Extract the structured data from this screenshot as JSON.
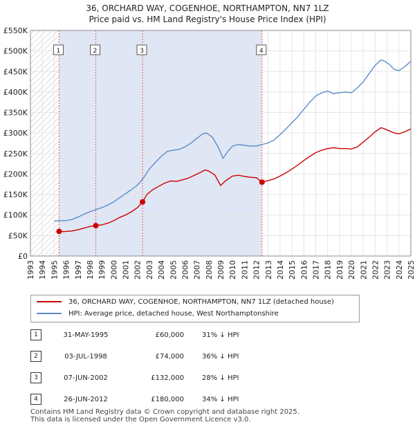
{
  "title_line1": "36, ORCHARD WAY, COGENHOE, NORTHAMPTON, NN7 1LZ",
  "title_line2": "Price paid vs. HM Land Registry's House Price Index (HPI)",
  "chart_data": {
    "type": "line",
    "xlim": [
      1993,
      2025
    ],
    "ylim": [
      0,
      550000
    ],
    "x_ticks": [
      "1993",
      "1994",
      "1995",
      "1996",
      "1997",
      "1998",
      "1999",
      "2000",
      "2001",
      "2002",
      "2003",
      "2004",
      "2005",
      "2006",
      "2007",
      "2008",
      "2009",
      "2010",
      "2011",
      "2012",
      "2013",
      "2014",
      "2015",
      "2016",
      "2017",
      "2018",
      "2019",
      "2020",
      "2021",
      "2022",
      "2023",
      "2024",
      "2025"
    ],
    "y_ticks": [
      {
        "value": 0,
        "label": "£0"
      },
      {
        "value": 50000,
        "label": "£50K"
      },
      {
        "value": 100000,
        "label": "£100K"
      },
      {
        "value": 150000,
        "label": "£150K"
      },
      {
        "value": 200000,
        "label": "£200K"
      },
      {
        "value": 250000,
        "label": "£250K"
      },
      {
        "value": 300000,
        "label": "£300K"
      },
      {
        "value": 350000,
        "label": "£350K"
      },
      {
        "value": 400000,
        "label": "£400K"
      },
      {
        "value": 450000,
        "label": "£450K"
      },
      {
        "value": 500000,
        "label": "£500K"
      },
      {
        "value": 550000,
        "label": "£550K"
      }
    ],
    "hatch_before_x": 1995.4,
    "series": [
      {
        "name": "36, ORCHARD WAY, COGENHOE, NORTHAMPTON, NN7 1LZ (detached house)",
        "color": "#cc0000",
        "points": [
          [
            1995.41,
            60000
          ],
          [
            1995.8,
            59500
          ],
          [
            1996.5,
            61000
          ],
          [
            1997.0,
            64000
          ],
          [
            1997.5,
            68000
          ],
          [
            1998.0,
            72000
          ],
          [
            1998.5,
            74000
          ],
          [
            1999.0,
            76000
          ],
          [
            1999.5,
            80000
          ],
          [
            2000.0,
            86000
          ],
          [
            2000.5,
            94000
          ],
          [
            2001.0,
            100000
          ],
          [
            2001.5,
            108000
          ],
          [
            2002.0,
            118000
          ],
          [
            2002.43,
            132000
          ],
          [
            2002.8,
            150000
          ],
          [
            2003.3,
            162000
          ],
          [
            2003.8,
            170000
          ],
          [
            2004.3,
            178000
          ],
          [
            2004.8,
            183000
          ],
          [
            2005.3,
            182000
          ],
          [
            2005.8,
            186000
          ],
          [
            2006.3,
            190000
          ],
          [
            2006.8,
            197000
          ],
          [
            2007.3,
            204000
          ],
          [
            2007.7,
            210000
          ],
          [
            2008.0,
            207000
          ],
          [
            2008.5,
            198000
          ],
          [
            2009.0,
            172000
          ],
          [
            2009.4,
            183000
          ],
          [
            2010.0,
            195000
          ],
          [
            2010.5,
            197000
          ],
          [
            2011.0,
            194000
          ],
          [
            2011.5,
            192000
          ],
          [
            2012.0,
            191000
          ],
          [
            2012.48,
            180000
          ],
          [
            2013.0,
            184000
          ],
          [
            2013.5,
            188000
          ],
          [
            2014.0,
            195000
          ],
          [
            2014.5,
            203000
          ],
          [
            2015.0,
            212000
          ],
          [
            2015.5,
            222000
          ],
          [
            2016.0,
            233000
          ],
          [
            2016.5,
            243000
          ],
          [
            2017.0,
            252000
          ],
          [
            2017.5,
            258000
          ],
          [
            2018.0,
            262000
          ],
          [
            2018.5,
            264000
          ],
          [
            2019.0,
            262000
          ],
          [
            2019.5,
            262000
          ],
          [
            2020.0,
            261000
          ],
          [
            2020.5,
            266000
          ],
          [
            2021.0,
            278000
          ],
          [
            2021.5,
            290000
          ],
          [
            2022.0,
            303000
          ],
          [
            2022.5,
            313000
          ],
          [
            2022.8,
            310000
          ],
          [
            2023.2,
            305000
          ],
          [
            2023.6,
            300000
          ],
          [
            2024.0,
            298000
          ],
          [
            2024.5,
            303000
          ],
          [
            2025.0,
            310000
          ]
        ]
      },
      {
        "name": "HPI: Average price, detached house, West Northamptonshire",
        "color": "#5b8cc8",
        "points": [
          [
            1995.0,
            85000
          ],
          [
            1995.5,
            86000
          ],
          [
            1996.0,
            86500
          ],
          [
            1996.5,
            89000
          ],
          [
            1997.0,
            95000
          ],
          [
            1997.5,
            102000
          ],
          [
            1998.0,
            108000
          ],
          [
            1998.5,
            113000
          ],
          [
            1999.0,
            118000
          ],
          [
            1999.5,
            124000
          ],
          [
            2000.0,
            132000
          ],
          [
            2000.5,
            142000
          ],
          [
            2001.0,
            152000
          ],
          [
            2001.5,
            162000
          ],
          [
            2002.0,
            173000
          ],
          [
            2002.5,
            190000
          ],
          [
            2003.0,
            212000
          ],
          [
            2003.5,
            228000
          ],
          [
            2004.0,
            243000
          ],
          [
            2004.5,
            255000
          ],
          [
            2005.0,
            258000
          ],
          [
            2005.5,
            260000
          ],
          [
            2006.0,
            266000
          ],
          [
            2006.5,
            275000
          ],
          [
            2007.0,
            287000
          ],
          [
            2007.5,
            298000
          ],
          [
            2007.8,
            300000
          ],
          [
            2008.3,
            290000
          ],
          [
            2008.8,
            265000
          ],
          [
            2009.2,
            238000
          ],
          [
            2009.6,
            255000
          ],
          [
            2010.0,
            268000
          ],
          [
            2010.5,
            272000
          ],
          [
            2011.0,
            270000
          ],
          [
            2011.5,
            268000
          ],
          [
            2012.0,
            268000
          ],
          [
            2012.5,
            272000
          ],
          [
            2013.0,
            276000
          ],
          [
            2013.5,
            283000
          ],
          [
            2014.0,
            296000
          ],
          [
            2014.5,
            310000
          ],
          [
            2015.0,
            325000
          ],
          [
            2015.5,
            340000
          ],
          [
            2016.0,
            358000
          ],
          [
            2016.5,
            375000
          ],
          [
            2017.0,
            390000
          ],
          [
            2017.5,
            398000
          ],
          [
            2018.0,
            402000
          ],
          [
            2018.5,
            396000
          ],
          [
            2019.0,
            398000
          ],
          [
            2019.5,
            400000
          ],
          [
            2020.0,
            398000
          ],
          [
            2020.5,
            410000
          ],
          [
            2021.0,
            425000
          ],
          [
            2021.5,
            445000
          ],
          [
            2022.0,
            465000
          ],
          [
            2022.5,
            478000
          ],
          [
            2022.8,
            475000
          ],
          [
            2023.2,
            467000
          ],
          [
            2023.6,
            455000
          ],
          [
            2024.0,
            452000
          ],
          [
            2024.5,
            462000
          ],
          [
            2025.0,
            475000
          ]
        ]
      }
    ],
    "sales": [
      {
        "label": "1",
        "x": 1995.41,
        "price": 60000
      },
      {
        "label": "2",
        "x": 1998.5,
        "price": 74000
      },
      {
        "label": "3",
        "x": 2002.43,
        "price": 132000
      },
      {
        "label": "4",
        "x": 2012.48,
        "price": 180000
      }
    ]
  },
  "legend": {
    "property_label": "36, ORCHARD WAY, COGENHOE, NORTHAMPTON, NN7 1LZ (detached house)",
    "property_color": "#cc0000",
    "hpi_label": "HPI: Average price, detached house, West Northamptonshire",
    "hpi_color": "#5b8cc8"
  },
  "table": [
    {
      "num": "1",
      "date": "31-MAY-1995",
      "price": "£60,000",
      "hpi": "31% ↓ HPI"
    },
    {
      "num": "2",
      "date": "03-JUL-1998",
      "price": "£74,000",
      "hpi": "36% ↓ HPI"
    },
    {
      "num": "3",
      "date": "07-JUN-2002",
      "price": "£132,000",
      "hpi": "28% ↓ HPI"
    },
    {
      "num": "4",
      "date": "26-JUN-2012",
      "price": "£180,000",
      "hpi": "34% ↓ HPI"
    }
  ],
  "footer_line1": "Contains HM Land Registry data © Crown copyright and database right 2025.",
  "footer_line2": "This data is licensed under the Open Government Licence v3.0."
}
